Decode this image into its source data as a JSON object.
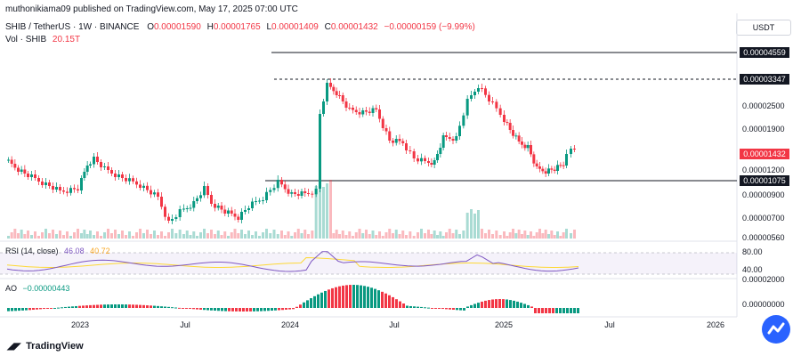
{
  "header": {
    "published": "muthonikiama09 published on TradingView.com, May 17, 2025 07:00 UTC",
    "symbol": "SHIB / TetherUS · 1W · BINANCE",
    "o_label": "O",
    "o_value": "0.00001590",
    "h_label": "H",
    "h_value": "0.00001765",
    "l_label": "L",
    "l_value": "0.00001409",
    "c_label": "C",
    "c_value": "0.00001432",
    "change": "−0.00000159 (−9.99%)",
    "vol_label": "Vol · SHIB",
    "vol_value": "20.15T"
  },
  "price_axis": {
    "currency": "USDT",
    "labels": [
      "0.00002500",
      "0.00001900",
      "0.00001200",
      "0.00000900",
      "0.00000700",
      "0.00000560"
    ],
    "boxes": [
      "0.00004559",
      "0.00003347",
      "0.00001432",
      "0.00001075"
    ]
  },
  "rsi": {
    "label": "RSI (14, close)",
    "value1": "46.08",
    "value2": "40.72",
    "axis": [
      "80.00",
      "40.00"
    ]
  },
  "ao": {
    "label": "AO",
    "value": "−0.00000443",
    "axis": [
      "0.00002000",
      "0.00000000"
    ]
  },
  "time_axis": [
    "2023",
    "Jul",
    "2024",
    "Jul",
    "2025",
    "Jul",
    "2026"
  ],
  "footer": {
    "brand": "TradingView"
  },
  "colors": {
    "up": "#089981",
    "down": "#f23645",
    "rsi": "#7e57c2",
    "rsi_ma": "#fdd835",
    "badge": "#2962ff"
  },
  "chart_data": {
    "type": "candlestick",
    "interval": "1W",
    "x_range": [
      "2022-09",
      "2026-03"
    ],
    "y_scale": "log",
    "horizontal_levels": [
      4.559e-05,
      3.347e-05,
      1.075e-05
    ],
    "current_close": 1.432e-05,
    "rsi_levels": [
      80,
      40
    ]
  }
}
